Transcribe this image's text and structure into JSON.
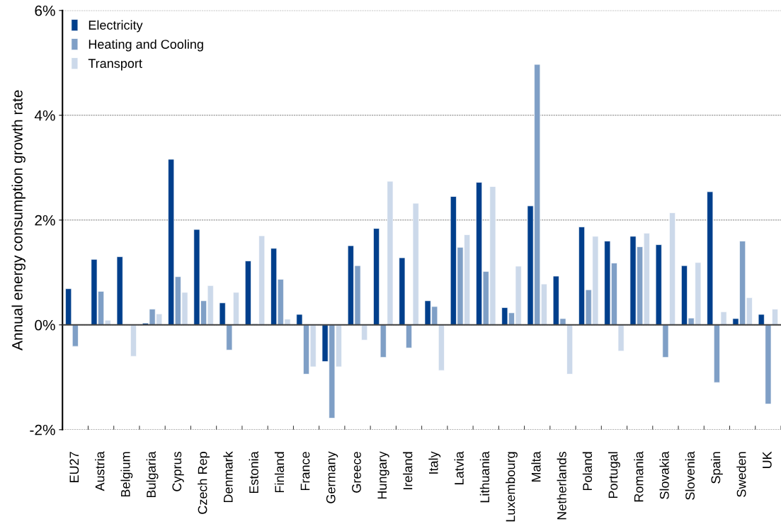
{
  "chart_data": {
    "type": "bar",
    "ylabel": "Annual energy consumption growth rate",
    "categories": [
      "EU27",
      "Austria",
      "Belgium",
      "Bulgaria",
      "Cyprus",
      "Czech Rep",
      "Denmark",
      "Estonia",
      "Finland",
      "France",
      "Germany",
      "Greece",
      "Hungary",
      "Ireland",
      "Italy",
      "Latvia",
      "Lithuania",
      "Luxembourg",
      "Malta",
      "Netherlands",
      "Poland",
      "Portugal",
      "Romania",
      "Slovakia",
      "Slovenia",
      "Spain",
      "Sweden",
      "UK"
    ],
    "series": [
      {
        "name": "Electricity",
        "color": "#003f8c",
        "values": [
          0.69,
          1.25,
          1.3,
          0.03,
          3.16,
          1.82,
          0.42,
          1.22,
          1.46,
          0.2,
          -0.7,
          1.51,
          1.84,
          1.28,
          0.46,
          2.45,
          2.72,
          0.33,
          2.27,
          0.93,
          1.87,
          1.6,
          1.69,
          1.53,
          1.13,
          2.54,
          0.12,
          0.2
        ]
      },
      {
        "name": "Heating and Cooling",
        "color": "#7f9fc6",
        "values": [
          -0.41,
          0.64,
          null,
          0.3,
          0.92,
          0.46,
          -0.48,
          0.02,
          0.87,
          -0.94,
          -1.78,
          1.13,
          -0.62,
          -0.44,
          0.35,
          1.48,
          1.02,
          0.23,
          4.97,
          0.12,
          0.67,
          1.18,
          1.49,
          -0.62,
          0.13,
          -1.1,
          1.6,
          -1.51
        ]
      },
      {
        "name": "Transport",
        "color": "#ccd9ea",
        "values": [
          null,
          0.09,
          -0.6,
          0.21,
          0.62,
          0.75,
          0.62,
          1.7,
          0.11,
          -0.8,
          -0.8,
          -0.29,
          2.74,
          2.32,
          -0.87,
          1.72,
          2.64,
          1.12,
          0.78,
          -0.94,
          1.69,
          -0.5,
          1.75,
          2.14,
          1.19,
          0.25,
          0.52,
          0.3
        ]
      }
    ],
    "ylim": [
      -2,
      6
    ],
    "yticks": [
      {
        "value": -2,
        "label": "-2%"
      },
      {
        "value": 0,
        "label": "0%"
      },
      {
        "value": 2,
        "label": "2%"
      },
      {
        "value": 4,
        "label": "4%"
      },
      {
        "value": 6,
        "label": "6%"
      }
    ],
    "grid": "y",
    "legend": "top left"
  }
}
